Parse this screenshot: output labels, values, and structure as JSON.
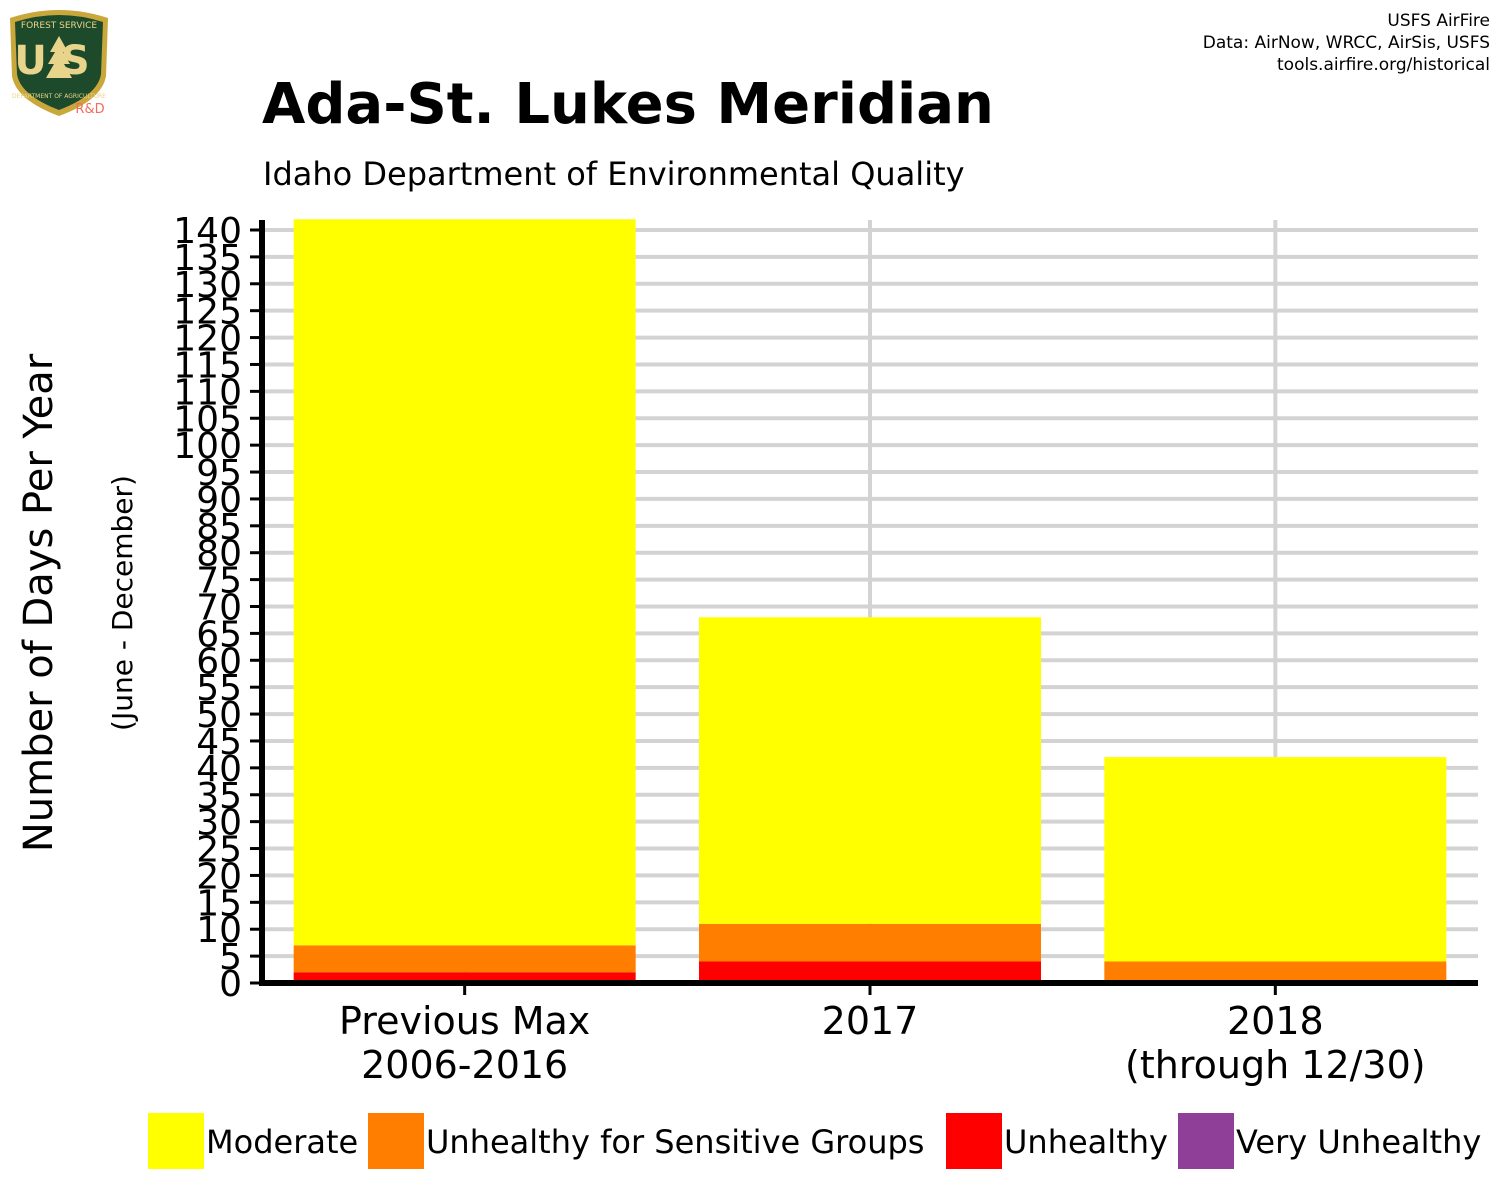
{
  "logo": {
    "text_top": "FOREST SERVICE",
    "text_main": "US",
    "text_bottom": "DEPARTMENT OF AGRICULTURE",
    "text_rd": "R&D"
  },
  "credits": {
    "line1": "USFS AirFire",
    "line2": "Data: AirNow, WRCC, AirSis, USFS",
    "line3": "tools.airfire.org/historical"
  },
  "chart_data": {
    "type": "bar",
    "stacked": true,
    "title": "Ada-St. Lukes Meridian",
    "subtitle": "Idaho Department of Environmental Quality",
    "ylabel": "Number of Days Per Year",
    "ylabel_sub": "(June - December)",
    "xlabel": "",
    "ylim": [
      0,
      140
    ],
    "y_ticks": [
      0,
      5,
      10,
      15,
      20,
      25,
      30,
      35,
      40,
      45,
      50,
      55,
      60,
      65,
      70,
      75,
      80,
      85,
      90,
      95,
      100,
      105,
      110,
      115,
      120,
      125,
      130,
      135,
      140
    ],
    "grid": true,
    "legend_position": "bottom",
    "categories": [
      [
        "Previous Max",
        "2006-2016"
      ],
      [
        "2017"
      ],
      [
        "2018",
        "(through 12/30)"
      ]
    ],
    "series": [
      {
        "name": "Unhealthy",
        "color": "#FF0000",
        "values": [
          2,
          4,
          0
        ]
      },
      {
        "name": "Unhealthy for Sensitive Groups",
        "color": "#FF7E00",
        "values": [
          5,
          7,
          4
        ]
      },
      {
        "name": "Moderate",
        "color": "#FFFF00",
        "values": [
          135,
          57,
          38
        ]
      },
      {
        "name": "Very Unhealthy",
        "color": "#8F3F97",
        "values": [
          0,
          0,
          0
        ]
      }
    ],
    "legend": [
      {
        "name": "Moderate",
        "color": "#FFFF00"
      },
      {
        "name": "Unhealthy for Sensitive Groups",
        "color": "#FF7E00"
      },
      {
        "name": "Unhealthy",
        "color": "#FF0000"
      },
      {
        "name": "Very Unhealthy",
        "color": "#8F3F97"
      }
    ]
  }
}
